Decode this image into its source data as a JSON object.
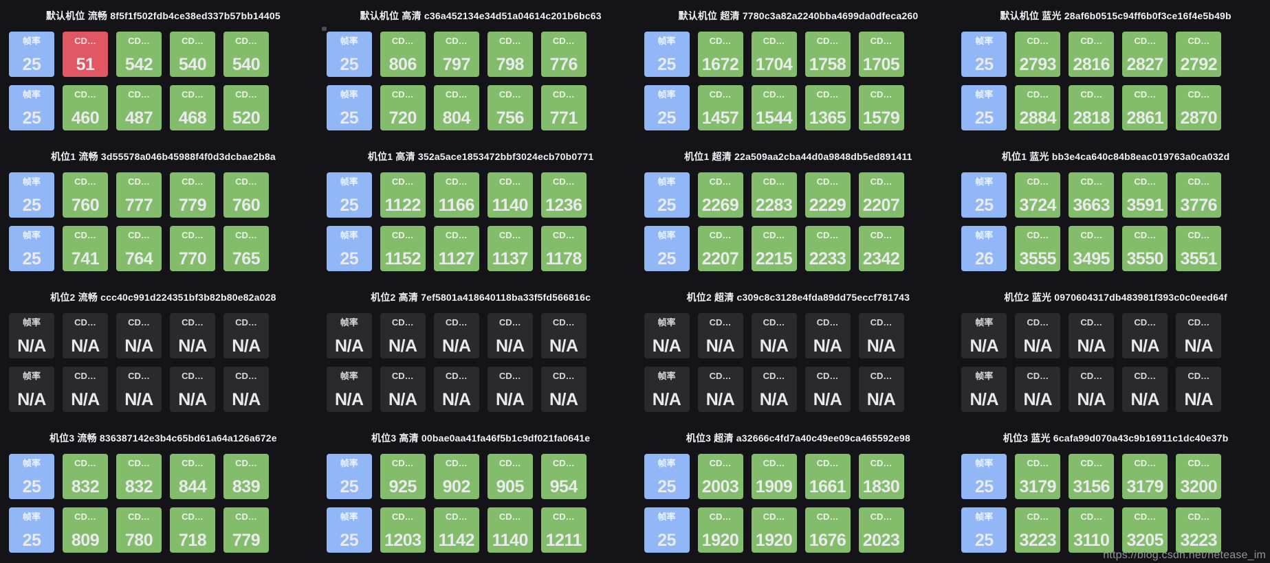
{
  "page": {
    "watermark": "https://blog.csdn.net/netease_im",
    "background": "#141418"
  },
  "palette": {
    "info": "#92b7f7",
    "ok": "#83bd6b",
    "error": "#e15663",
    "na": "#2a2a2e"
  },
  "labels": {
    "framerate": "帧率",
    "cd_metric": "CD…"
  },
  "sections": [
    {
      "title": "默认机位 流畅 8f5f1f502fdb4ce38ed337b57bb14405",
      "rows": [
        [
          {
            "label": "帧率",
            "value": "25",
            "status": "info"
          },
          {
            "label": "CD…",
            "value": "51",
            "status": "error"
          },
          {
            "label": "CD…",
            "value": "542",
            "status": "ok"
          },
          {
            "label": "CD…",
            "value": "540",
            "status": "ok"
          },
          {
            "label": "CD…",
            "value": "540",
            "status": "ok"
          }
        ],
        [
          {
            "label": "帧率",
            "value": "25",
            "status": "info"
          },
          {
            "label": "CD…",
            "value": "460",
            "status": "ok"
          },
          {
            "label": "CD…",
            "value": "487",
            "status": "ok"
          },
          {
            "label": "CD…",
            "value": "468",
            "status": "ok"
          },
          {
            "label": "CD…",
            "value": "520",
            "status": "ok"
          }
        ]
      ]
    },
    {
      "title": "默认机位 高清 c36a452134e34d51a04614c201b6bc63",
      "rows": [
        [
          {
            "label": "帧率",
            "value": "25",
            "status": "info"
          },
          {
            "label": "CD…",
            "value": "806",
            "status": "ok"
          },
          {
            "label": "CD…",
            "value": "797",
            "status": "ok"
          },
          {
            "label": "CD…",
            "value": "798",
            "status": "ok"
          },
          {
            "label": "CD…",
            "value": "776",
            "status": "ok"
          }
        ],
        [
          {
            "label": "帧率",
            "value": "25",
            "status": "info"
          },
          {
            "label": "CD…",
            "value": "720",
            "status": "ok"
          },
          {
            "label": "CD…",
            "value": "804",
            "status": "ok"
          },
          {
            "label": "CD…",
            "value": "756",
            "status": "ok"
          },
          {
            "label": "CD…",
            "value": "771",
            "status": "ok"
          }
        ]
      ]
    },
    {
      "title": "默认机位 超清 7780c3a82a2240bba4699da0dfeca260",
      "rows": [
        [
          {
            "label": "帧率",
            "value": "25",
            "status": "info"
          },
          {
            "label": "CD…",
            "value": "1672",
            "status": "ok"
          },
          {
            "label": "CD…",
            "value": "1704",
            "status": "ok"
          },
          {
            "label": "CD…",
            "value": "1758",
            "status": "ok"
          },
          {
            "label": "CD…",
            "value": "1705",
            "status": "ok"
          }
        ],
        [
          {
            "label": "帧率",
            "value": "25",
            "status": "info"
          },
          {
            "label": "CD…",
            "value": "1457",
            "status": "ok"
          },
          {
            "label": "CD…",
            "value": "1544",
            "status": "ok"
          },
          {
            "label": "CD…",
            "value": "1365",
            "status": "ok"
          },
          {
            "label": "CD…",
            "value": "1579",
            "status": "ok"
          }
        ]
      ]
    },
    {
      "title": "默认机位 蓝光 28af6b0515c94ff6b0f3ce16f4e5b49b",
      "rows": [
        [
          {
            "label": "帧率",
            "value": "25",
            "status": "info"
          },
          {
            "label": "CD…",
            "value": "2793",
            "status": "ok"
          },
          {
            "label": "CD…",
            "value": "2816",
            "status": "ok"
          },
          {
            "label": "CD…",
            "value": "2827",
            "status": "ok"
          },
          {
            "label": "CD…",
            "value": "2792",
            "status": "ok"
          }
        ],
        [
          {
            "label": "帧率",
            "value": "25",
            "status": "info"
          },
          {
            "label": "CD…",
            "value": "2884",
            "status": "ok"
          },
          {
            "label": "CD…",
            "value": "2818",
            "status": "ok"
          },
          {
            "label": "CD…",
            "value": "2861",
            "status": "ok"
          },
          {
            "label": "CD…",
            "value": "2870",
            "status": "ok"
          }
        ]
      ]
    },
    {
      "title": "机位1 流畅 3d55578a046b45988f4f0d3dcbae2b8a",
      "rows": [
        [
          {
            "label": "帧率",
            "value": "25",
            "status": "info"
          },
          {
            "label": "CD…",
            "value": "760",
            "status": "ok"
          },
          {
            "label": "CD…",
            "value": "777",
            "status": "ok"
          },
          {
            "label": "CD…",
            "value": "779",
            "status": "ok"
          },
          {
            "label": "CD…",
            "value": "760",
            "status": "ok"
          }
        ],
        [
          {
            "label": "帧率",
            "value": "25",
            "status": "info"
          },
          {
            "label": "CD…",
            "value": "741",
            "status": "ok"
          },
          {
            "label": "CD…",
            "value": "764",
            "status": "ok"
          },
          {
            "label": "CD…",
            "value": "770",
            "status": "ok"
          },
          {
            "label": "CD…",
            "value": "765",
            "status": "ok"
          }
        ]
      ]
    },
    {
      "title": "机位1 高清 352a5ace1853472bbf3024ecb70b0771",
      "rows": [
        [
          {
            "label": "帧率",
            "value": "25",
            "status": "info"
          },
          {
            "label": "CD…",
            "value": "1122",
            "status": "ok"
          },
          {
            "label": "CD…",
            "value": "1166",
            "status": "ok"
          },
          {
            "label": "CD…",
            "value": "1140",
            "status": "ok"
          },
          {
            "label": "CD…",
            "value": "1236",
            "status": "ok"
          }
        ],
        [
          {
            "label": "帧率",
            "value": "25",
            "status": "info"
          },
          {
            "label": "CD…",
            "value": "1152",
            "status": "ok"
          },
          {
            "label": "CD…",
            "value": "1127",
            "status": "ok"
          },
          {
            "label": "CD…",
            "value": "1137",
            "status": "ok"
          },
          {
            "label": "CD…",
            "value": "1178",
            "status": "ok"
          }
        ]
      ]
    },
    {
      "title": "机位1 超清 22a509aa2cba44d0a9848db5ed891411",
      "rows": [
        [
          {
            "label": "帧率",
            "value": "25",
            "status": "info"
          },
          {
            "label": "CD…",
            "value": "2269",
            "status": "ok"
          },
          {
            "label": "CD…",
            "value": "2283",
            "status": "ok"
          },
          {
            "label": "CD…",
            "value": "2229",
            "status": "ok"
          },
          {
            "label": "CD…",
            "value": "2207",
            "status": "ok"
          }
        ],
        [
          {
            "label": "帧率",
            "value": "25",
            "status": "info"
          },
          {
            "label": "CD…",
            "value": "2207",
            "status": "ok"
          },
          {
            "label": "CD…",
            "value": "2215",
            "status": "ok"
          },
          {
            "label": "CD…",
            "value": "2233",
            "status": "ok"
          },
          {
            "label": "CD…",
            "value": "2342",
            "status": "ok"
          }
        ]
      ]
    },
    {
      "title": "机位1 蓝光 bb3e4ca640c84b8eac019763a0ca032d",
      "rows": [
        [
          {
            "label": "帧率",
            "value": "25",
            "status": "info"
          },
          {
            "label": "CD…",
            "value": "3724",
            "status": "ok"
          },
          {
            "label": "CD…",
            "value": "3663",
            "status": "ok"
          },
          {
            "label": "CD…",
            "value": "3591",
            "status": "ok"
          },
          {
            "label": "CD…",
            "value": "3776",
            "status": "ok"
          }
        ],
        [
          {
            "label": "帧率",
            "value": "26",
            "status": "info"
          },
          {
            "label": "CD…",
            "value": "3555",
            "status": "ok"
          },
          {
            "label": "CD…",
            "value": "3495",
            "status": "ok"
          },
          {
            "label": "CD…",
            "value": "3550",
            "status": "ok"
          },
          {
            "label": "CD…",
            "value": "3551",
            "status": "ok"
          }
        ]
      ]
    },
    {
      "title": "机位2 流畅 ccc40c991d224351bf3b82b80e82a028",
      "rows": [
        [
          {
            "label": "帧率",
            "value": "N/A",
            "status": "na"
          },
          {
            "label": "CD…",
            "value": "N/A",
            "status": "na"
          },
          {
            "label": "CD…",
            "value": "N/A",
            "status": "na"
          },
          {
            "label": "CD…",
            "value": "N/A",
            "status": "na"
          },
          {
            "label": "CD…",
            "value": "N/A",
            "status": "na"
          }
        ],
        [
          {
            "label": "帧率",
            "value": "N/A",
            "status": "na"
          },
          {
            "label": "CD…",
            "value": "N/A",
            "status": "na"
          },
          {
            "label": "CD…",
            "value": "N/A",
            "status": "na"
          },
          {
            "label": "CD…",
            "value": "N/A",
            "status": "na"
          },
          {
            "label": "CD…",
            "value": "N/A",
            "status": "na"
          }
        ]
      ]
    },
    {
      "title": "机位2 高清 7ef5801a418640118ba33f5fd566816c",
      "rows": [
        [
          {
            "label": "帧率",
            "value": "N/A",
            "status": "na"
          },
          {
            "label": "CD…",
            "value": "N/A",
            "status": "na"
          },
          {
            "label": "CD…",
            "value": "N/A",
            "status": "na"
          },
          {
            "label": "CD…",
            "value": "N/A",
            "status": "na"
          },
          {
            "label": "CD…",
            "value": "N/A",
            "status": "na"
          }
        ],
        [
          {
            "label": "帧率",
            "value": "N/A",
            "status": "na"
          },
          {
            "label": "CD…",
            "value": "N/A",
            "status": "na"
          },
          {
            "label": "CD…",
            "value": "N/A",
            "status": "na"
          },
          {
            "label": "CD…",
            "value": "N/A",
            "status": "na"
          },
          {
            "label": "CD…",
            "value": "N/A",
            "status": "na"
          }
        ]
      ]
    },
    {
      "title": "机位2 超清 c309c8c3128e4fda89dd75eccf781743",
      "rows": [
        [
          {
            "label": "帧率",
            "value": "N/A",
            "status": "na"
          },
          {
            "label": "CD…",
            "value": "N/A",
            "status": "na"
          },
          {
            "label": "CD…",
            "value": "N/A",
            "status": "na"
          },
          {
            "label": "CD…",
            "value": "N/A",
            "status": "na"
          },
          {
            "label": "CD…",
            "value": "N/A",
            "status": "na"
          }
        ],
        [
          {
            "label": "帧率",
            "value": "N/A",
            "status": "na"
          },
          {
            "label": "CD…",
            "value": "N/A",
            "status": "na"
          },
          {
            "label": "CD…",
            "value": "N/A",
            "status": "na"
          },
          {
            "label": "CD…",
            "value": "N/A",
            "status": "na"
          },
          {
            "label": "CD…",
            "value": "N/A",
            "status": "na"
          }
        ]
      ]
    },
    {
      "title": "机位2 蓝光 0970604317db483981f393c0c0eed64f",
      "rows": [
        [
          {
            "label": "帧率",
            "value": "N/A",
            "status": "na"
          },
          {
            "label": "CD…",
            "value": "N/A",
            "status": "na"
          },
          {
            "label": "CD…",
            "value": "N/A",
            "status": "na"
          },
          {
            "label": "CD…",
            "value": "N/A",
            "status": "na"
          },
          {
            "label": "CD…",
            "value": "N/A",
            "status": "na"
          }
        ],
        [
          {
            "label": "帧率",
            "value": "N/A",
            "status": "na"
          },
          {
            "label": "CD…",
            "value": "N/A",
            "status": "na"
          },
          {
            "label": "CD…",
            "value": "N/A",
            "status": "na"
          },
          {
            "label": "CD…",
            "value": "N/A",
            "status": "na"
          },
          {
            "label": "CD…",
            "value": "N/A",
            "status": "na"
          }
        ]
      ]
    },
    {
      "title": "机位3 流畅 836387142e3b4c65bd61a64a126a672e",
      "rows": [
        [
          {
            "label": "帧率",
            "value": "25",
            "status": "info"
          },
          {
            "label": "CD…",
            "value": "832",
            "status": "ok"
          },
          {
            "label": "CD…",
            "value": "832",
            "status": "ok"
          },
          {
            "label": "CD…",
            "value": "844",
            "status": "ok"
          },
          {
            "label": "CD…",
            "value": "839",
            "status": "ok"
          }
        ],
        [
          {
            "label": "帧率",
            "value": "25",
            "status": "info"
          },
          {
            "label": "CD…",
            "value": "809",
            "status": "ok"
          },
          {
            "label": "CD…",
            "value": "780",
            "status": "ok"
          },
          {
            "label": "CD…",
            "value": "718",
            "status": "ok"
          },
          {
            "label": "CD…",
            "value": "779",
            "status": "ok"
          }
        ]
      ]
    },
    {
      "title": "机位3 高清 00bae0aa41fa46f5b1c9df021fa0641e",
      "rows": [
        [
          {
            "label": "帧率",
            "value": "25",
            "status": "info"
          },
          {
            "label": "CD…",
            "value": "925",
            "status": "ok"
          },
          {
            "label": "CD…",
            "value": "902",
            "status": "ok"
          },
          {
            "label": "CD…",
            "value": "905",
            "status": "ok"
          },
          {
            "label": "CD…",
            "value": "954",
            "status": "ok"
          }
        ],
        [
          {
            "label": "帧率",
            "value": "25",
            "status": "info"
          },
          {
            "label": "CD…",
            "value": "1203",
            "status": "ok"
          },
          {
            "label": "CD…",
            "value": "1142",
            "status": "ok"
          },
          {
            "label": "CD…",
            "value": "1140",
            "status": "ok"
          },
          {
            "label": "CD…",
            "value": "1211",
            "status": "ok"
          }
        ]
      ]
    },
    {
      "title": "机位3 超清 a32666c4fd7a40c49ee09ca465592e98",
      "rows": [
        [
          {
            "label": "帧率",
            "value": "25",
            "status": "info"
          },
          {
            "label": "CD…",
            "value": "2003",
            "status": "ok"
          },
          {
            "label": "CD…",
            "value": "1909",
            "status": "ok"
          },
          {
            "label": "CD…",
            "value": "1661",
            "status": "ok"
          },
          {
            "label": "CD…",
            "value": "1830",
            "status": "ok"
          }
        ],
        [
          {
            "label": "帧率",
            "value": "25",
            "status": "info"
          },
          {
            "label": "CD…",
            "value": "1920",
            "status": "ok"
          },
          {
            "label": "CD…",
            "value": "1920",
            "status": "ok"
          },
          {
            "label": "CD…",
            "value": "1676",
            "status": "ok"
          },
          {
            "label": "CD…",
            "value": "2023",
            "status": "ok"
          }
        ]
      ]
    },
    {
      "title": "机位3 蓝光 6cafa99d070a43c9b16911c1dc40e37b",
      "rows": [
        [
          {
            "label": "帧率",
            "value": "25",
            "status": "info"
          },
          {
            "label": "CD…",
            "value": "3179",
            "status": "ok"
          },
          {
            "label": "CD…",
            "value": "3156",
            "status": "ok"
          },
          {
            "label": "CD…",
            "value": "3179",
            "status": "ok"
          },
          {
            "label": "CD…",
            "value": "3200",
            "status": "ok"
          }
        ],
        [
          {
            "label": "帧率",
            "value": "25",
            "status": "info"
          },
          {
            "label": "CD…",
            "value": "3223",
            "status": "ok"
          },
          {
            "label": "CD…",
            "value": "3110",
            "status": "ok"
          },
          {
            "label": "CD…",
            "value": "3205",
            "status": "ok"
          },
          {
            "label": "CD…",
            "value": "3223",
            "status": "ok"
          }
        ]
      ]
    }
  ]
}
